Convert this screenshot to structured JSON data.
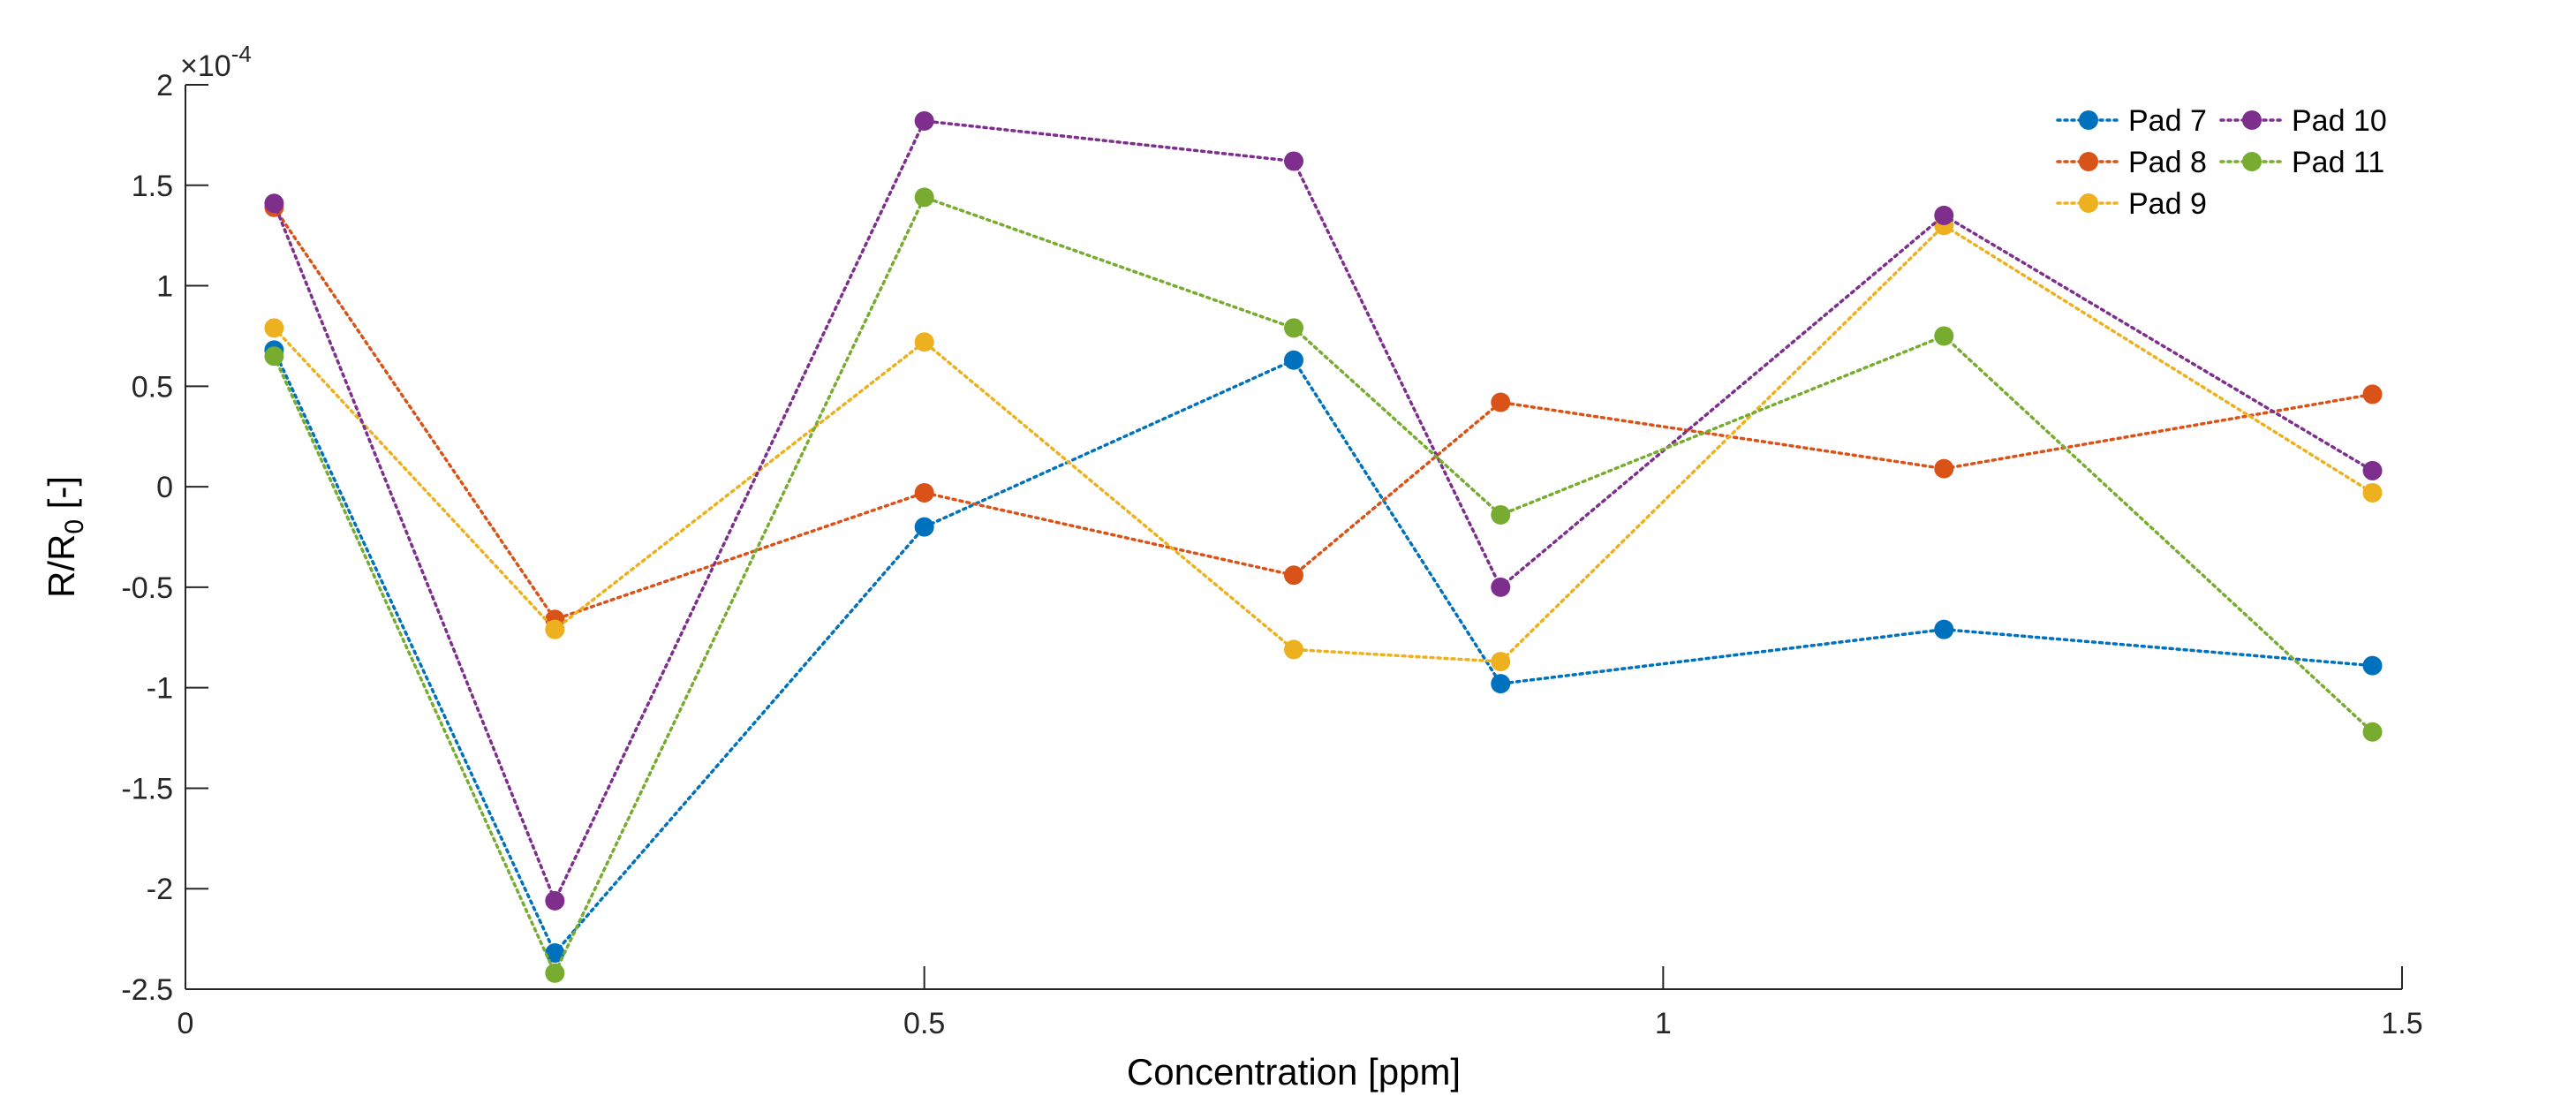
{
  "chart_data": {
    "type": "line",
    "xlabel": "Concentration [ppm]",
    "ylabel": "R/R",
    "ylabel_sub": "0",
    "ylabel_suffix": " [-]",
    "exponent_label": "×10",
    "exponent_power": "-4",
    "xlim": [
      0,
      1.5
    ],
    "ylim": [
      -2.5,
      2
    ],
    "xticks": [
      0,
      0.5,
      1,
      1.5
    ],
    "xtick_labels": [
      "0",
      "0.5",
      "1",
      "1.5"
    ],
    "yticks": [
      -2.5,
      -2,
      -1.5,
      -1,
      -0.5,
      0,
      0.5,
      1,
      1.5,
      2
    ],
    "ytick_labels": [
      "-2.5",
      "-2",
      "-1.5",
      "-1",
      "-0.5",
      "0",
      "0.5",
      "1",
      "1.5",
      "2"
    ],
    "grid": false,
    "legend_position": "top-right",
    "line_style": "dotted",
    "x": [
      0.06,
      0.25,
      0.5,
      0.75,
      0.89,
      1.19,
      1.48
    ],
    "series": [
      {
        "name": "Pad 7",
        "color": "#0072BD",
        "values": [
          0.68,
          -2.32,
          -0.2,
          0.63,
          -0.98,
          -0.71,
          -0.89
        ]
      },
      {
        "name": "Pad 8",
        "color": "#D95319",
        "values": [
          1.39,
          -0.66,
          -0.03,
          -0.44,
          0.42,
          0.09,
          0.46
        ]
      },
      {
        "name": "Pad 9",
        "color": "#EDB120",
        "values": [
          0.79,
          -0.71,
          0.72,
          -0.81,
          -0.87,
          1.3,
          -0.03
        ]
      },
      {
        "name": "Pad 10",
        "color": "#7E2F8E",
        "values": [
          1.41,
          -2.06,
          1.82,
          1.62,
          -0.5,
          1.35,
          0.08
        ]
      },
      {
        "name": "Pad 11",
        "color": "#77AC30",
        "values": [
          0.65,
          -2.42,
          1.44,
          0.79,
          -0.14,
          0.75,
          -1.22
        ]
      }
    ]
  }
}
